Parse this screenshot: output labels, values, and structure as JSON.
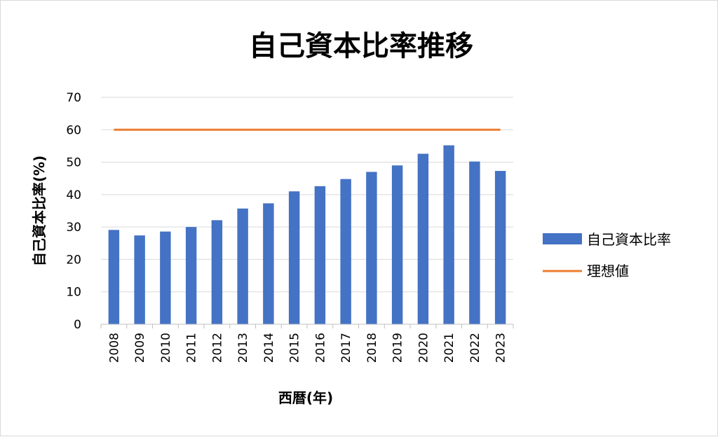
{
  "chart_data": {
    "type": "bar",
    "title": "自己資本比率推移",
    "xlabel": "西暦(年)",
    "ylabel": "自己資本比率(%)",
    "categories": [
      "2008",
      "2009",
      "2010",
      "2011",
      "2012",
      "2013",
      "2014",
      "2015",
      "2016",
      "2017",
      "2018",
      "2019",
      "2020",
      "2021",
      "2022",
      "2023"
    ],
    "series": [
      {
        "name": "自己資本比率",
        "type": "bar",
        "color": "#4472c4",
        "values": [
          29.1,
          27.4,
          28.6,
          30.0,
          32.1,
          35.7,
          37.3,
          41.0,
          42.6,
          44.8,
          47.0,
          49.0,
          52.6,
          55.2,
          50.2,
          47.3
        ]
      },
      {
        "name": "理想値",
        "type": "line",
        "color": "#ed7d31",
        "values": [
          60,
          60,
          60,
          60,
          60,
          60,
          60,
          60,
          60,
          60,
          60,
          60,
          60,
          60,
          60,
          60
        ]
      }
    ],
    "ylim": [
      0,
      70
    ],
    "yticks": [
      0,
      10,
      20,
      30,
      40,
      50,
      60,
      70
    ],
    "grid": true,
    "legend": "right"
  }
}
